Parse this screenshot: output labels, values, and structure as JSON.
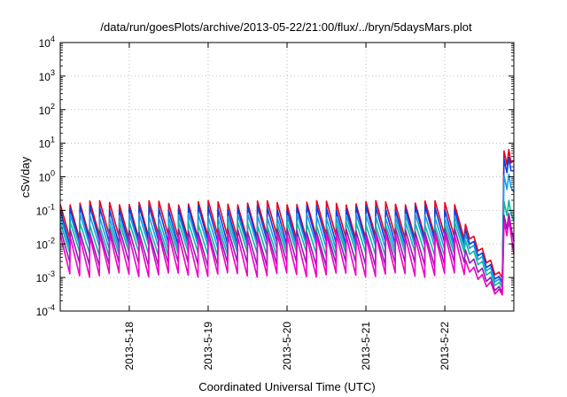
{
  "chart_data": {
    "type": "line",
    "title": "/data/run/goesPlots/archive/2013-05-22/21:00/flux/../bryn/5daysMars.plot",
    "xlabel": "Coordinated Universal Time (UTC)",
    "ylabel": "cSv/day",
    "yscale": "log",
    "ylim": [
      0.0001,
      10000
    ],
    "xlim": [
      "2013-05-17 03:00",
      "2013-05-22 21:00"
    ],
    "grid": true,
    "y_ticks": [
      {
        "base": "10",
        "exp": "-4"
      },
      {
        "base": "10",
        "exp": "-3"
      },
      {
        "base": "10",
        "exp": "-2"
      },
      {
        "base": "10",
        "exp": "-1"
      },
      {
        "base": "10",
        "exp": "0"
      },
      {
        "base": "10",
        "exp": "1"
      },
      {
        "base": "10",
        "exp": "2"
      },
      {
        "base": "10",
        "exp": "3"
      },
      {
        "base": "10",
        "exp": "4"
      }
    ],
    "x_ticks": [
      "2013-5-18",
      "2013-5-19",
      "2013-5-20",
      "2013-5-21",
      "2013-5-22"
    ],
    "sawtooth_period_hours": 3,
    "series": [
      {
        "color": "#e8001c",
        "quiet_peak": 0.17,
        "quiet_trough": 0.016,
        "event_min": 0.0008,
        "event_peak": 6.5,
        "event_end": 3.0
      },
      {
        "color": "#0a3fe0",
        "quiet_peak": 0.12,
        "quiet_trough": 0.011,
        "event_min": 0.0006,
        "event_peak": 3.8,
        "event_end": 1.5
      },
      {
        "color": "#1a9be8",
        "quiet_peak": 0.07,
        "quiet_trough": 0.008,
        "event_min": 0.0005,
        "event_peak": 1.2,
        "event_end": 0.35
      },
      {
        "color": "#10b8a0",
        "quiet_peak": 0.04,
        "quiet_trough": 0.005,
        "event_min": 0.0004,
        "event_peak": 0.2,
        "event_end": 0.05
      },
      {
        "color": "#8a1fb0",
        "quiet_peak": 0.025,
        "quiet_trough": 0.0025,
        "event_min": 0.0003,
        "event_peak": 0.08,
        "event_end": 0.012
      },
      {
        "color": "#f000c8",
        "quiet_peak": 0.018,
        "quiet_trough": 0.0012,
        "event_min": 0.00025,
        "event_peak": 0.05,
        "event_end": 0.005
      }
    ]
  }
}
